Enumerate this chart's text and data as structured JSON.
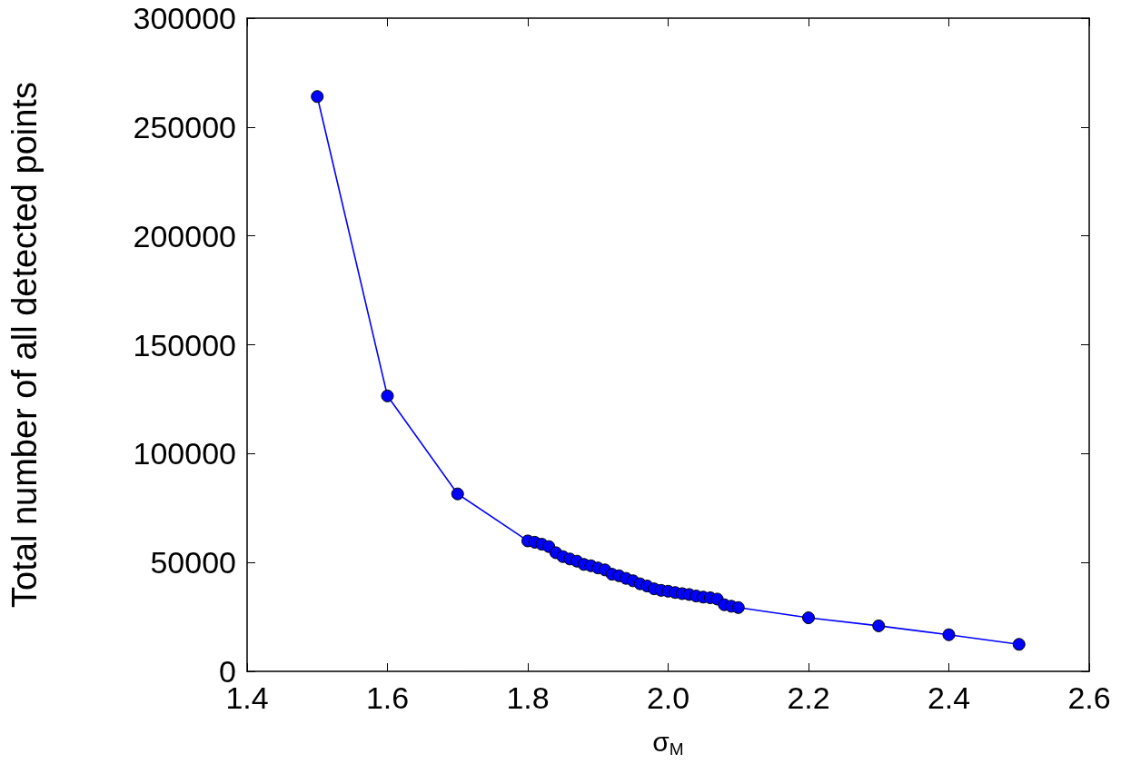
{
  "chart_data": {
    "type": "line",
    "xlabel": "σ$_{M}$",
    "ylabel": "Total number of all detected points",
    "x": [
      1.5,
      1.6,
      1.7,
      1.8,
      1.81,
      1.82,
      1.83,
      1.84,
      1.85,
      1.86,
      1.87,
      1.88,
      1.89,
      1.9,
      1.91,
      1.92,
      1.93,
      1.94,
      1.95,
      1.96,
      1.97,
      1.98,
      1.99,
      2.0,
      2.01,
      2.02,
      2.03,
      2.04,
      2.05,
      2.06,
      2.07,
      2.08,
      2.09,
      2.1,
      2.2,
      2.3,
      2.4,
      2.5
    ],
    "values": [
      264000,
      126500,
      81500,
      59900,
      59300,
      58400,
      57300,
      54500,
      52700,
      51600,
      50600,
      49100,
      48500,
      47500,
      46600,
      44600,
      43900,
      42700,
      41600,
      40200,
      39200,
      37900,
      37200,
      36800,
      36200,
      35700,
      35300,
      34600,
      34100,
      33800,
      33200,
      30600,
      29900,
      29300,
      24600,
      20900,
      16800,
      12400
    ],
    "color": "#0000ff",
    "marker": "circle",
    "line_style": "solid",
    "grid": false,
    "xlim": [
      1.4,
      2.6
    ],
    "xticks": [
      1.4,
      1.6,
      1.8,
      {
        "value": 2,
        "label": "2.0"
      },
      2.2,
      2.4,
      2.6
    ],
    "ylim": [
      0,
      300000
    ],
    "yticks": [
      0,
      50000,
      100000,
      150000,
      200000,
      250000,
      300000
    ]
  }
}
